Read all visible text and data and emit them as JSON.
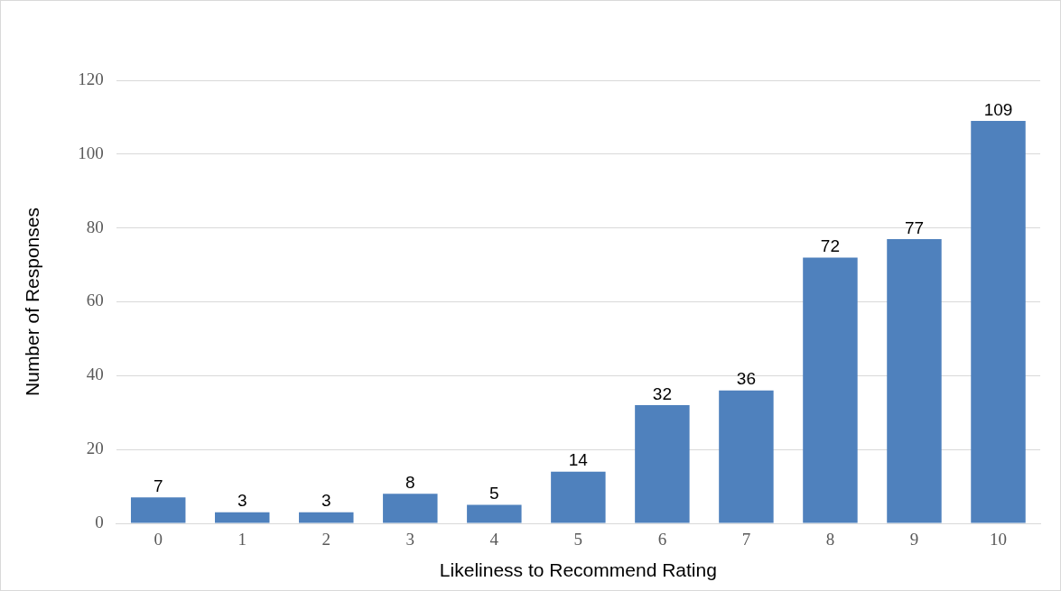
{
  "chart_data": {
    "type": "bar",
    "xlabel": "Likeliness to Recommend Rating",
    "ylabel": "Number of Responses",
    "categories": [
      "0",
      "1",
      "2",
      "3",
      "4",
      "5",
      "6",
      "7",
      "8",
      "9",
      "10"
    ],
    "values": [
      7,
      3,
      3,
      8,
      5,
      14,
      32,
      36,
      72,
      77,
      109
    ],
    "color": "#4f81bd",
    "ylim": [
      0,
      120
    ],
    "yticks": [
      0,
      20,
      40,
      60,
      80,
      100,
      120
    ],
    "grid": "y",
    "legend": false,
    "data_labels": true
  }
}
